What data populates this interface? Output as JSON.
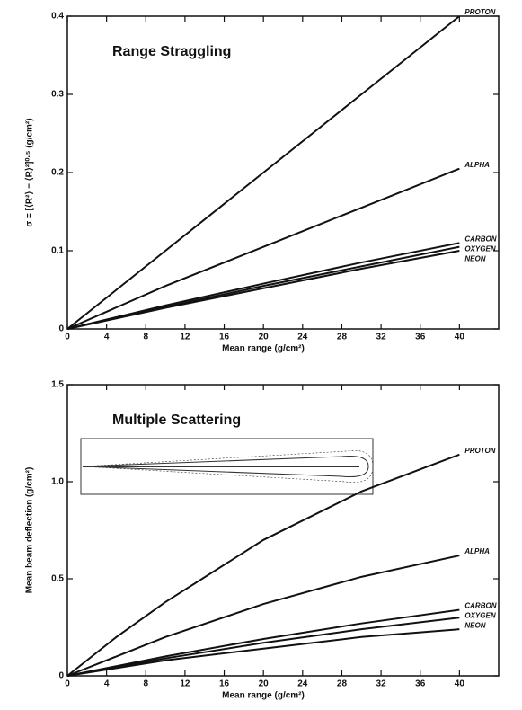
{
  "chart_data": [
    {
      "type": "line",
      "annotation": "Range Straggling",
      "x_label": "Mean range (g/cm²)",
      "y_label": "σ = [⟨R²⟩ − ⟨R⟩²]⁰·⁵ (g/cm²)",
      "x": [
        0,
        10,
        20,
        30,
        40
      ],
      "series": [
        {
          "name": "PROTON",
          "color": "#111111",
          "values": [
            0,
            0.1,
            0.2,
            0.3,
            0.4
          ]
        },
        {
          "name": "ALPHA",
          "color": "#111111",
          "values": [
            0,
            0.055,
            0.105,
            0.155,
            0.205
          ]
        },
        {
          "name": "CARBON",
          "color": "#111111",
          "values": [
            0,
            0.03,
            0.058,
            0.085,
            0.11
          ]
        },
        {
          "name": "OXYGEN",
          "color": "#111111",
          "values": [
            0,
            0.028,
            0.055,
            0.08,
            0.105
          ]
        },
        {
          "name": "NEON",
          "color": "#111111",
          "values": [
            0,
            0.027,
            0.052,
            0.077,
            0.1
          ]
        }
      ],
      "xlim": [
        0,
        44
      ],
      "xticks": [
        0,
        4,
        8,
        12,
        16,
        20,
        24,
        28,
        32,
        36,
        40
      ],
      "ylim": [
        0,
        0.4
      ],
      "yticks": [
        0,
        0.1,
        0.2,
        0.3,
        0.4
      ]
    },
    {
      "type": "line",
      "annotation": "Multiple Scattering",
      "x_label": "Mean range (g/cm²)",
      "y_label": "Mean beam deflection (g/cm²)",
      "x": [
        0,
        5,
        10,
        20,
        30,
        40
      ],
      "series": [
        {
          "name": "PROTON",
          "color": "#111111",
          "values": [
            0,
            0.2,
            0.38,
            0.7,
            0.95,
            1.14
          ]
        },
        {
          "name": "ALPHA",
          "color": "#111111",
          "values": [
            0,
            0.1,
            0.2,
            0.37,
            0.51,
            0.62
          ]
        },
        {
          "name": "CARBON",
          "color": "#111111",
          "values": [
            0,
            0.05,
            0.1,
            0.19,
            0.27,
            0.34
          ]
        },
        {
          "name": "OXYGEN",
          "color": "#111111",
          "values": [
            0,
            0.045,
            0.09,
            0.17,
            0.24,
            0.3
          ]
        },
        {
          "name": "NEON",
          "color": "#111111",
          "values": [
            0,
            0.04,
            0.08,
            0.14,
            0.2,
            0.24
          ]
        }
      ],
      "xlim": [
        0,
        44
      ],
      "xticks": [
        0,
        4,
        8,
        12,
        16,
        20,
        24,
        28,
        32,
        36,
        40
      ],
      "ylim": [
        0,
        1.5
      ],
      "yticks": [
        0,
        0.5,
        {
          "value": 1,
          "label": "1.0"
        },
        1.5
      ]
    }
  ]
}
